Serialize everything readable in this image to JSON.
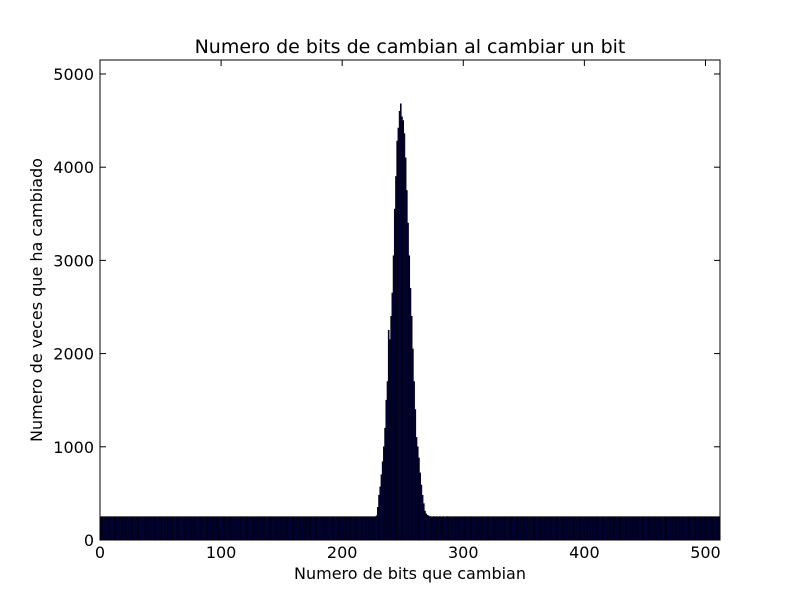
{
  "chart_data": {
    "type": "bar",
    "title": "Numero de bits de cambian al cambiar un bit",
    "xlabel": "Numero de bits que cambian",
    "ylabel": "Numero de veces que ha cambiado",
    "xlim": [
      0,
      512
    ],
    "ylim": [
      0,
      5150
    ],
    "xticks": [
      0,
      100,
      200,
      300,
      400,
      500
    ],
    "yticks": [
      0,
      1000,
      2000,
      3000,
      4000,
      5000
    ],
    "grid": false,
    "bar_fill": "#000080",
    "bar_edge": "#000000",
    "baseline_level": 250,
    "baseline_range": [
      0,
      227
    ],
    "baseline_range_right": [
      287,
      511
    ],
    "peak": {
      "x": [
        228,
        229,
        230,
        231,
        232,
        233,
        234,
        235,
        236,
        237,
        238,
        239,
        240,
        241,
        242,
        243,
        244,
        245,
        246,
        247,
        248,
        249,
        250,
        251,
        252,
        253,
        254,
        255,
        256,
        257,
        258,
        259,
        260,
        261,
        262,
        263,
        264,
        265,
        266,
        267,
        268,
        269,
        270,
        271,
        272,
        273,
        274,
        275,
        276,
        277,
        278,
        279,
        280,
        281,
        282,
        283,
        284,
        285,
        286
      ],
      "y": [
        260,
        350,
        480,
        570,
        700,
        840,
        1000,
        1200,
        1500,
        1700,
        2250,
        2150,
        2400,
        2650,
        3050,
        3550,
        3900,
        4280,
        4420,
        4600,
        4680,
        4540,
        4500,
        4360,
        4100,
        3750,
        3400,
        3050,
        2700,
        2400,
        2050,
        1700,
        1400,
        1100,
        1000,
        880,
        720,
        590,
        480,
        390,
        310,
        280,
        265,
        258,
        252,
        250,
        248,
        252,
        249,
        251,
        250,
        248,
        252,
        250,
        249,
        251,
        250,
        248,
        252
      ]
    }
  }
}
